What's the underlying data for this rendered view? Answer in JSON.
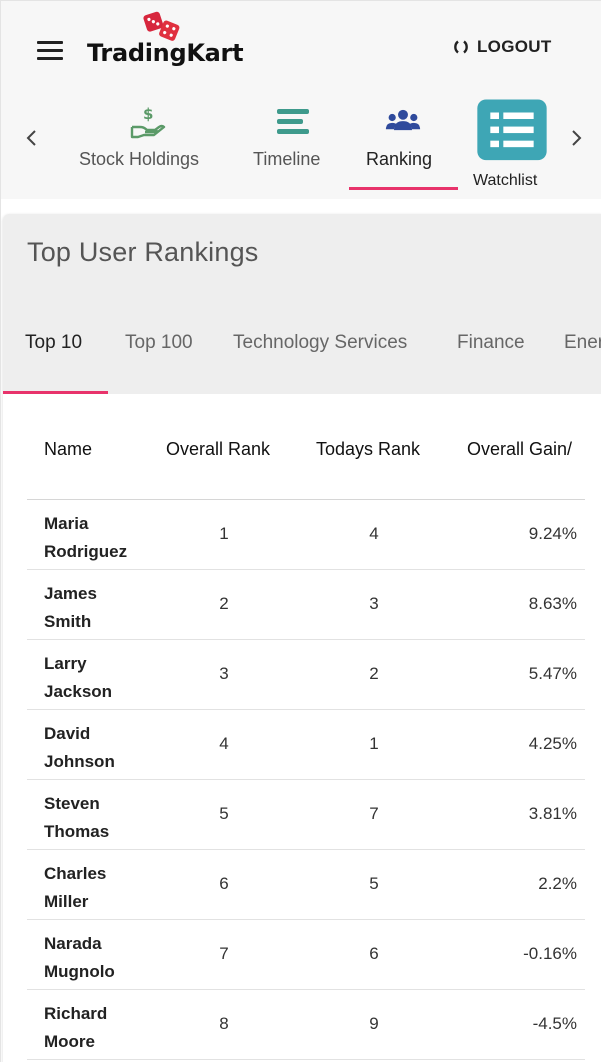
{
  "header": {
    "brand": "TradingKart",
    "logout_label": "LOGOUT"
  },
  "nav": {
    "tabs": [
      {
        "label": "Stock Holdings",
        "icon": "money-hand-icon",
        "color": "#5b9a68"
      },
      {
        "label": "Timeline",
        "icon": "timeline-lines-icon",
        "color": "#3e9a8c"
      },
      {
        "label": "Ranking",
        "icon": "users-group-icon",
        "color": "#2f4a9c",
        "active": true
      },
      {
        "label": "Watchlist",
        "icon": "list-icon",
        "color": "#3ea6b5"
      }
    ],
    "active_color": "#e8336b"
  },
  "card": {
    "title": "Top User Rankings",
    "tabs": [
      "Top 10",
      "Top 100",
      "Technology Services",
      "Finance",
      "Energy"
    ],
    "active_tab": "Top 10"
  },
  "table": {
    "headers": [
      "Name",
      "Overall Rank",
      "Todays Rank",
      "Overall Gain/"
    ],
    "rows": [
      {
        "first": "Maria",
        "last": "Rodriguez",
        "overall": "1",
        "today": "4",
        "gain": "9.24%"
      },
      {
        "first": "James",
        "last": "Smith",
        "overall": "2",
        "today": "3",
        "gain": "8.63%"
      },
      {
        "first": "Larry",
        "last": "Jackson",
        "overall": "3",
        "today": "2",
        "gain": "5.47%"
      },
      {
        "first": "David",
        "last": "Johnson",
        "overall": "4",
        "today": "1",
        "gain": "4.25%"
      },
      {
        "first": "Steven",
        "last": "Thomas",
        "overall": "5",
        "today": "7",
        "gain": "3.81%"
      },
      {
        "first": "Charles",
        "last": "Miller",
        "overall": "6",
        "today": "5",
        "gain": "2.2%"
      },
      {
        "first": "Narada",
        "last": "Mugnolo",
        "overall": "7",
        "today": "6",
        "gain": "-0.16%"
      },
      {
        "first": "Richard",
        "last": "Moore",
        "overall": "8",
        "today": "9",
        "gain": "-4.5%"
      }
    ]
  }
}
